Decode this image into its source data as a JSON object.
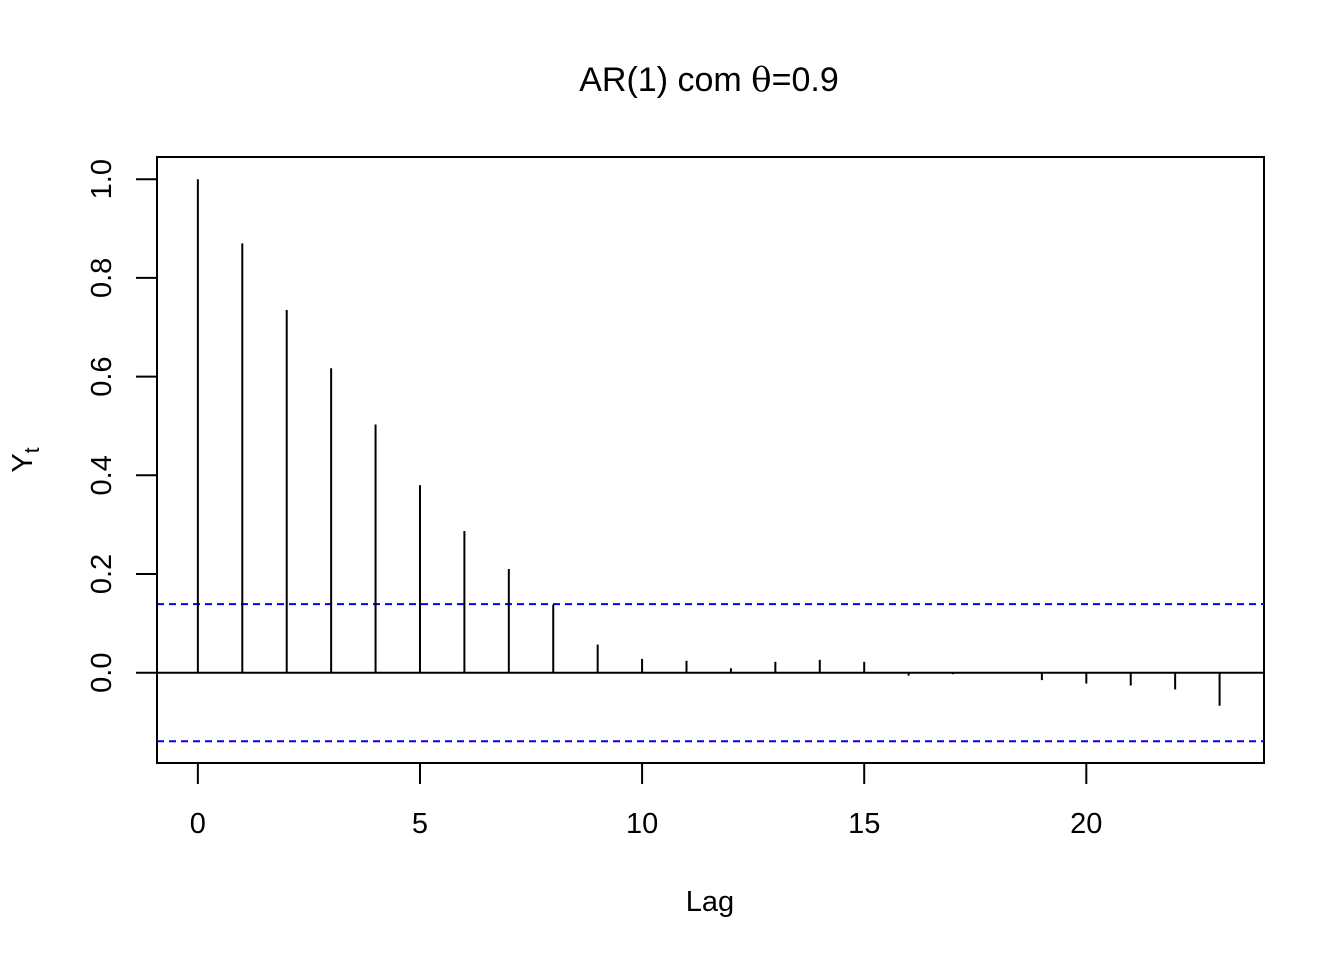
{
  "chart_data": {
    "type": "bar",
    "title_prefix": "AR(1) com ",
    "title_symbol": "θ",
    "title_suffix": "=0.9",
    "xlabel": "Lag",
    "ylabel_main": "Y",
    "ylabel_sub": "t",
    "xlim": [
      -0.92,
      24.0
    ],
    "ylim": [
      -0.183,
      1.045
    ],
    "x_ticks": [
      0,
      5,
      10,
      15,
      20
    ],
    "x_tick_labels": [
      "0",
      "5",
      "10",
      "15",
      "20"
    ],
    "y_ticks": [
      0.0,
      0.2,
      0.4,
      0.6,
      0.8,
      1.0
    ],
    "y_tick_labels": [
      "0.0",
      "0.2",
      "0.4",
      "0.6",
      "0.8",
      "1.0"
    ],
    "x": [
      0,
      1,
      2,
      3,
      4,
      5,
      6,
      7,
      8,
      9,
      10,
      11,
      12,
      13,
      14,
      15,
      16,
      17,
      18,
      19,
      20,
      21,
      22,
      23
    ],
    "values": [
      1.0,
      0.87,
      0.735,
      0.617,
      0.503,
      0.38,
      0.287,
      0.21,
      0.138,
      0.057,
      0.028,
      0.024,
      0.009,
      0.022,
      0.026,
      0.022,
      -0.006,
      -0.003,
      0.0,
      -0.015,
      -0.022,
      -0.026,
      -0.034,
      -0.067
    ],
    "confidence_bound": 0.139,
    "colors": {
      "bars": "#000000",
      "bounds": "#0000ff",
      "zero_line": "#000000"
    }
  }
}
